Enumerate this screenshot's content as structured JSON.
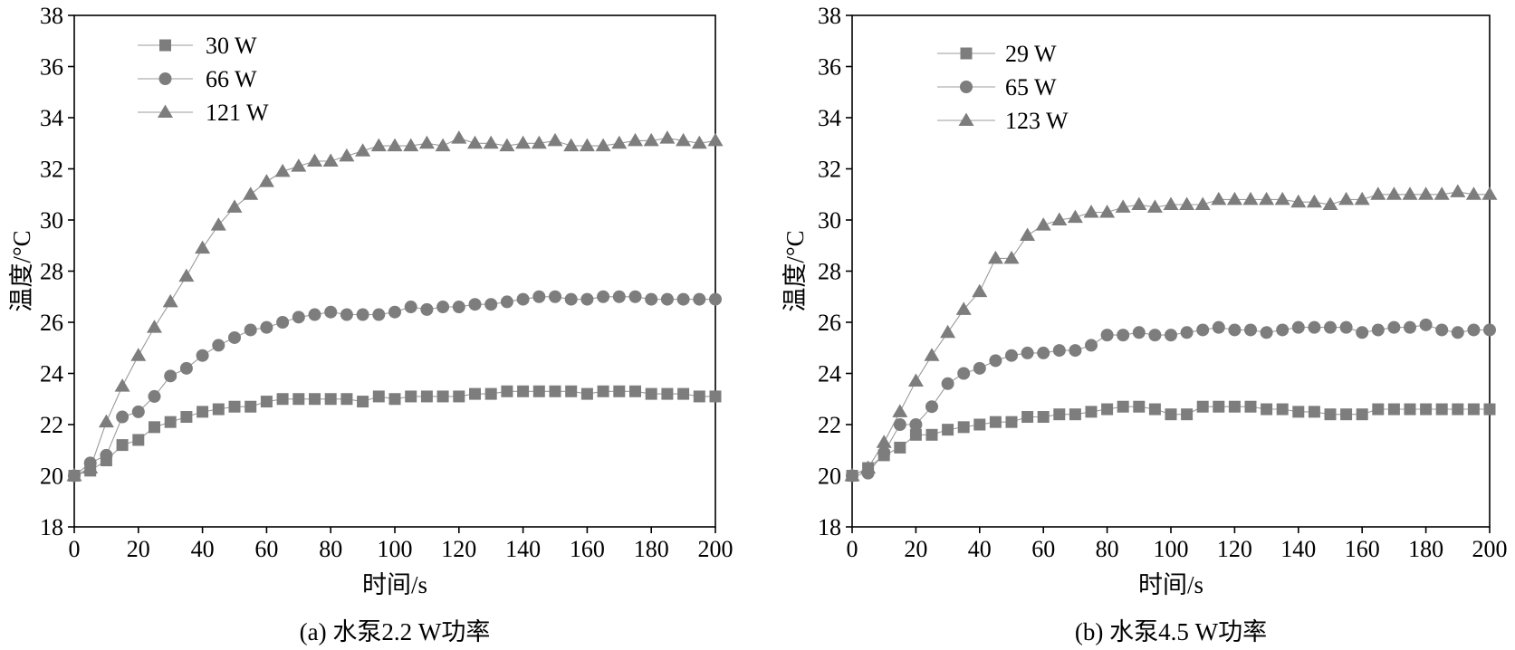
{
  "colors": {
    "marker": "#7d7d7d",
    "line": "#9b9b9b",
    "axis": "#000000"
  },
  "chart_data": [
    {
      "type": "line",
      "caption": "(a) 水泵2.2 W功率",
      "xlabel": "时间/s",
      "ylabel": "温度/°C",
      "xlim": [
        0,
        200
      ],
      "ylim": [
        18,
        38
      ],
      "xticks": [
        0,
        20,
        40,
        60,
        80,
        100,
        120,
        140,
        160,
        180,
        200
      ],
      "yticks": [
        18,
        20,
        22,
        24,
        26,
        28,
        30,
        32,
        34,
        36,
        38
      ],
      "grid": false,
      "legend_position": "top-left",
      "x": [
        0,
        5,
        10,
        15,
        20,
        25,
        30,
        35,
        40,
        45,
        50,
        55,
        60,
        65,
        70,
        75,
        80,
        85,
        90,
        95,
        100,
        105,
        110,
        115,
        120,
        125,
        130,
        135,
        140,
        145,
        150,
        155,
        160,
        165,
        170,
        175,
        180,
        185,
        190,
        195,
        200
      ],
      "series": [
        {
          "name": "30 W",
          "marker": "square",
          "values": [
            20.0,
            20.2,
            20.6,
            21.2,
            21.4,
            21.9,
            22.1,
            22.3,
            22.5,
            22.6,
            22.7,
            22.7,
            22.9,
            23.0,
            23.0,
            23.0,
            23.0,
            23.0,
            22.9,
            23.1,
            23.0,
            23.1,
            23.1,
            23.1,
            23.1,
            23.2,
            23.2,
            23.3,
            23.3,
            23.3,
            23.3,
            23.3,
            23.2,
            23.3,
            23.3,
            23.3,
            23.2,
            23.2,
            23.2,
            23.1,
            23.1
          ]
        },
        {
          "name": "66 W",
          "marker": "circle",
          "values": [
            20.0,
            20.5,
            20.8,
            22.3,
            22.5,
            23.1,
            23.9,
            24.2,
            24.7,
            25.1,
            25.4,
            25.7,
            25.8,
            26.0,
            26.2,
            26.3,
            26.4,
            26.3,
            26.3,
            26.3,
            26.4,
            26.6,
            26.5,
            26.6,
            26.6,
            26.7,
            26.7,
            26.8,
            26.9,
            27.0,
            27.0,
            26.9,
            26.9,
            27.0,
            27.0,
            27.0,
            26.9,
            26.9,
            26.9,
            26.9,
            26.9
          ]
        },
        {
          "name": "121 W",
          "marker": "triangle",
          "values": [
            20.0,
            20.3,
            22.1,
            23.5,
            24.7,
            25.8,
            26.8,
            27.8,
            28.9,
            29.8,
            30.5,
            31.0,
            31.5,
            31.9,
            32.1,
            32.3,
            32.3,
            32.5,
            32.7,
            32.9,
            32.9,
            32.9,
            33.0,
            32.9,
            33.2,
            33.0,
            33.0,
            32.9,
            33.0,
            33.0,
            33.1,
            32.9,
            32.9,
            32.9,
            33.0,
            33.1,
            33.1,
            33.2,
            33.1,
            33.0,
            33.1
          ]
        }
      ]
    },
    {
      "type": "line",
      "caption": "(b) 水泵4.5 W功率",
      "xlabel": "时间/s",
      "ylabel": "温度/°C",
      "xlim": [
        0,
        200
      ],
      "ylim": [
        18,
        38
      ],
      "xticks": [
        0,
        20,
        40,
        60,
        80,
        100,
        120,
        140,
        160,
        180,
        200
      ],
      "yticks": [
        18,
        20,
        22,
        24,
        26,
        28,
        30,
        32,
        34,
        36,
        38
      ],
      "grid": false,
      "legend_position": "top-left",
      "x": [
        0,
        5,
        10,
        15,
        20,
        25,
        30,
        35,
        40,
        45,
        50,
        55,
        60,
        65,
        70,
        75,
        80,
        85,
        90,
        95,
        100,
        105,
        110,
        115,
        120,
        125,
        130,
        135,
        140,
        145,
        150,
        155,
        160,
        165,
        170,
        175,
        180,
        185,
        190,
        195,
        200
      ],
      "series": [
        {
          "name": "29 W",
          "marker": "square",
          "values": [
            20.0,
            20.3,
            20.8,
            21.1,
            21.6,
            21.6,
            21.8,
            21.9,
            22.0,
            22.1,
            22.1,
            22.3,
            22.3,
            22.4,
            22.4,
            22.5,
            22.6,
            22.7,
            22.7,
            22.6,
            22.4,
            22.4,
            22.7,
            22.7,
            22.7,
            22.7,
            22.6,
            22.6,
            22.5,
            22.5,
            22.4,
            22.4,
            22.4,
            22.6,
            22.6,
            22.6,
            22.6,
            22.6,
            22.6,
            22.6,
            22.6
          ]
        },
        {
          "name": "65 W",
          "marker": "circle",
          "values": [
            20.0,
            20.1,
            20.9,
            22.0,
            22.0,
            22.7,
            23.6,
            24.0,
            24.2,
            24.5,
            24.7,
            24.8,
            24.8,
            24.9,
            24.9,
            25.1,
            25.5,
            25.5,
            25.6,
            25.5,
            25.5,
            25.6,
            25.7,
            25.8,
            25.7,
            25.7,
            25.6,
            25.7,
            25.8,
            25.8,
            25.8,
            25.8,
            25.6,
            25.7,
            25.8,
            25.8,
            25.9,
            25.7,
            25.6,
            25.7,
            25.7
          ]
        },
        {
          "name": "123 W",
          "marker": "triangle",
          "values": [
            20.0,
            20.3,
            21.3,
            22.5,
            23.7,
            24.7,
            25.6,
            26.5,
            27.2,
            28.5,
            28.5,
            29.4,
            29.8,
            30.0,
            30.1,
            30.3,
            30.3,
            30.5,
            30.6,
            30.5,
            30.6,
            30.6,
            30.6,
            30.8,
            30.8,
            30.8,
            30.8,
            30.8,
            30.7,
            30.7,
            30.6,
            30.8,
            30.8,
            31.0,
            31.0,
            31.0,
            31.0,
            31.0,
            31.1,
            31.0,
            31.0
          ]
        }
      ]
    }
  ]
}
